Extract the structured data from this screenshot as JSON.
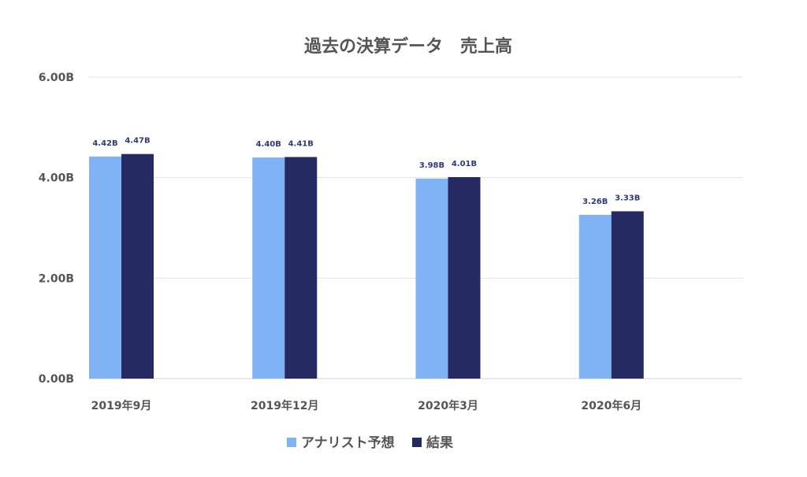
{
  "chart_data": {
    "type": "bar",
    "title": "過去の決算データ　売上高",
    "categories": [
      "2019年9月",
      "2019年12月",
      "2020年3月",
      "2020年6月"
    ],
    "series": [
      {
        "name": "アナリスト予想",
        "values": [
          4.42,
          4.4,
          3.98,
          3.26
        ],
        "labels": [
          "4.42B",
          "4.40B",
          "3.98B",
          "3.26B"
        ],
        "color": "#7fb3f5"
      },
      {
        "name": "結果",
        "values": [
          4.47,
          4.41,
          4.01,
          3.33
        ],
        "labels": [
          "4.47B",
          "4.41B",
          "4.01B",
          "3.33B"
        ],
        "color": "#252a63"
      }
    ],
    "yticks": [
      0,
      2,
      4,
      6
    ],
    "ytick_labels": [
      "0.00B",
      "2.00B",
      "4.00B",
      "6.00B"
    ],
    "ylim": [
      0,
      6
    ],
    "grid": true,
    "legend_position": "bottom"
  }
}
